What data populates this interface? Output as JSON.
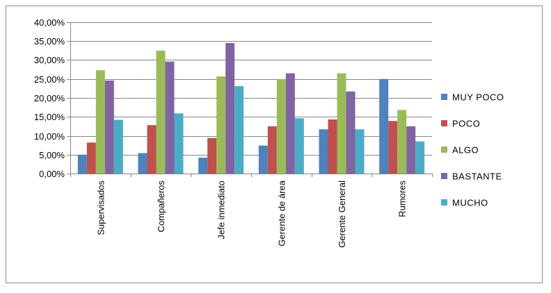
{
  "chart_data": {
    "type": "bar",
    "categories": [
      "Supervisados",
      "Compañeros",
      "Jefe inmediato",
      "Gerente de área",
      "Gerente General",
      "Rumores"
    ],
    "series": [
      {
        "name": "MUY POCO",
        "color": "#4f81bd",
        "values": [
          0.05,
          0.054,
          0.042,
          0.074,
          0.117,
          0.25
        ]
      },
      {
        "name": "POCO",
        "color": "#c0504d",
        "values": [
          0.082,
          0.128,
          0.094,
          0.125,
          0.143,
          0.139
        ]
      },
      {
        "name": "ALGO",
        "color": "#9bbb59",
        "values": [
          0.273,
          0.325,
          0.257,
          0.25,
          0.265,
          0.168
        ]
      },
      {
        "name": "BASTANTE",
        "color": "#8064a2",
        "values": [
          0.246,
          0.296,
          0.345,
          0.265,
          0.217,
          0.125
        ]
      },
      {
        "name": "MUCHO",
        "color": "#4bacc6",
        "values": [
          0.142,
          0.159,
          0.231,
          0.146,
          0.117,
          0.085
        ]
      }
    ],
    "yticks": [
      "0,00%",
      "5,00%",
      "10,00%",
      "15,00%",
      "20,00%",
      "25,00%",
      "30,00%",
      "35,00%",
      "40,00%"
    ],
    "ylim": [
      0,
      0.4
    ],
    "ystep": 0.05,
    "grid": true,
    "legend": "right"
  }
}
